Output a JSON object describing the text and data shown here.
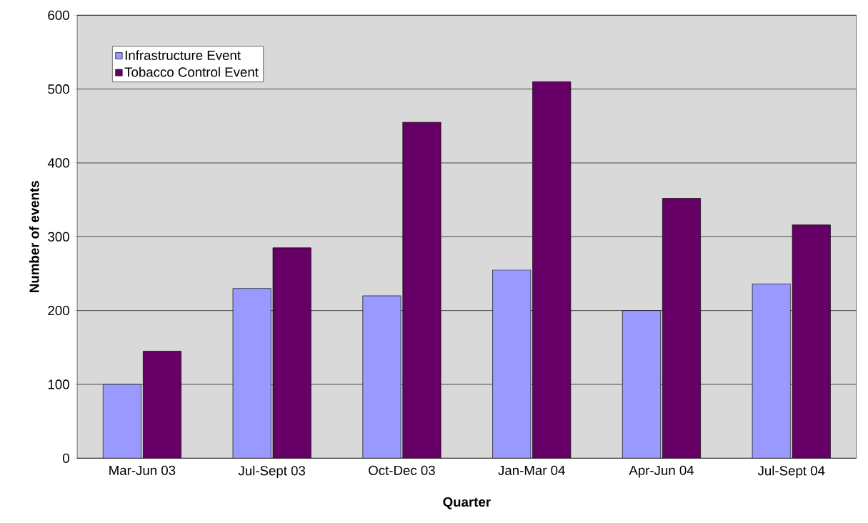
{
  "chart_data": {
    "type": "bar",
    "xlabel": "Quarter",
    "ylabel": "Number of events",
    "categories": [
      "Mar-Jun 03",
      "Jul-Sept 03",
      "Oct-Dec 03",
      "Jan-Mar 04",
      "Apr-Jun 04",
      "Jul-Sept 04"
    ],
    "series": [
      {
        "name": "Infrastructure Event",
        "color": "#9999ff",
        "values": [
          100,
          230,
          220,
          255,
          200,
          236
        ]
      },
      {
        "name": "Tobacco Control Event",
        "color": "#660066",
        "values": [
          145,
          285,
          455,
          510,
          352,
          316
        ]
      }
    ],
    "ylim": [
      0,
      600
    ],
    "yticks": [
      0,
      100,
      200,
      300,
      400,
      500,
      600
    ],
    "grid": "y",
    "legend": "top left"
  }
}
